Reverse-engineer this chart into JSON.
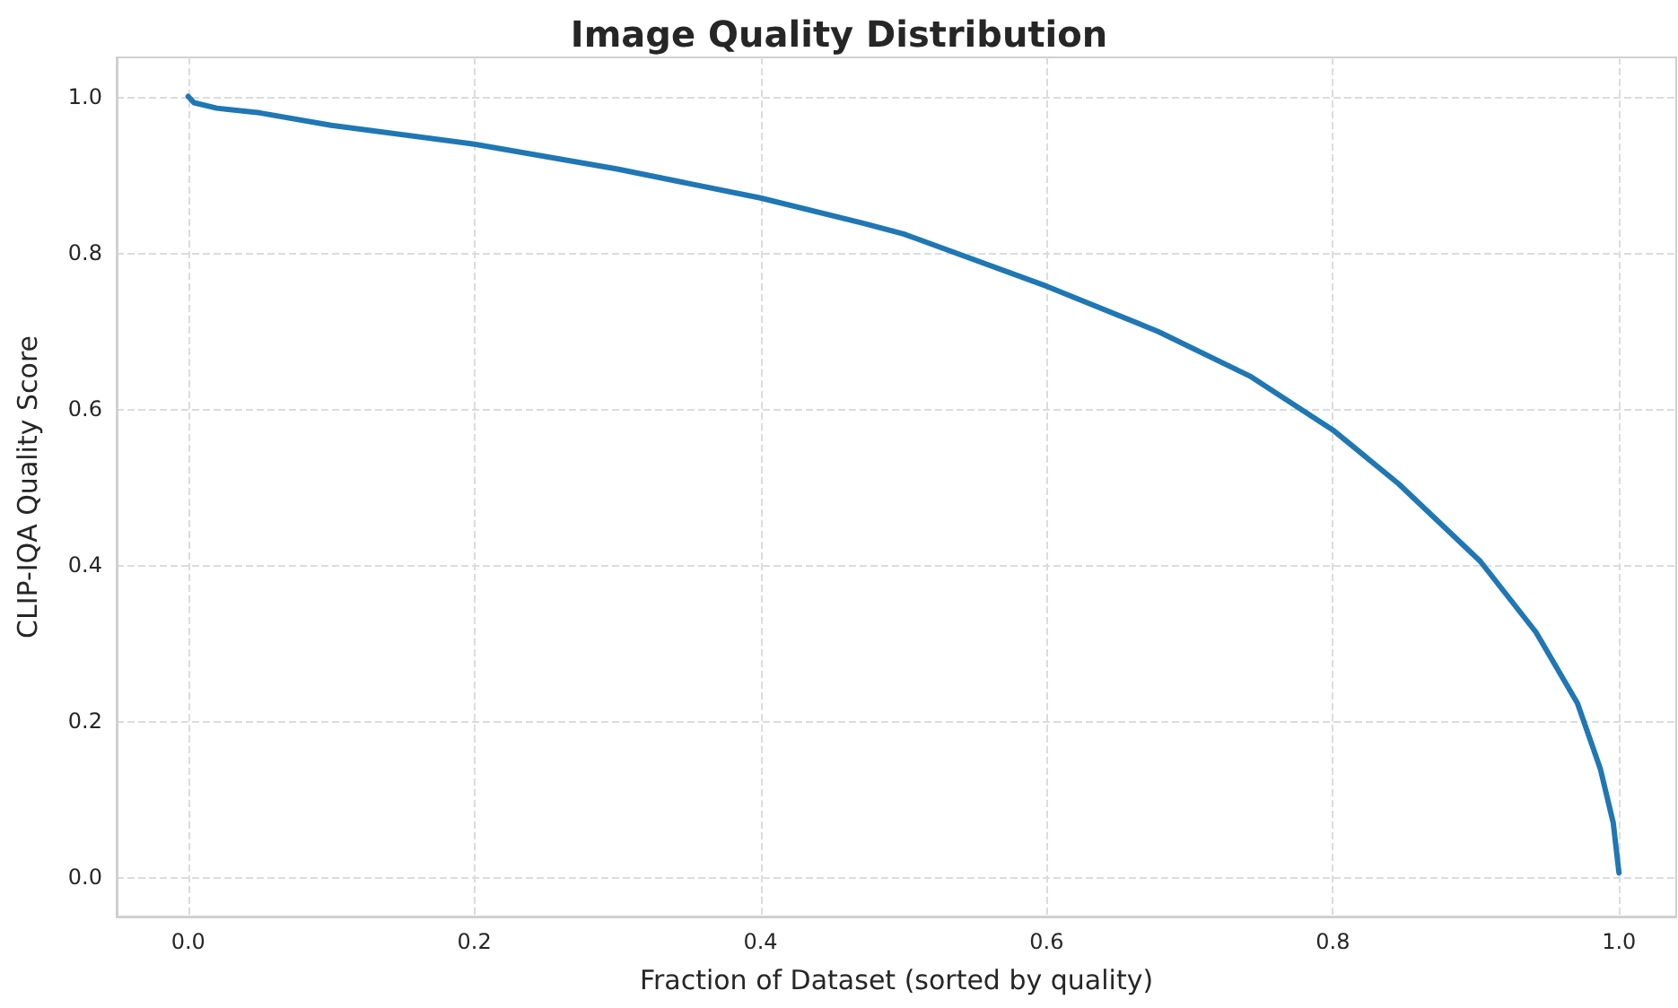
{
  "chart_data": {
    "type": "line",
    "title": "Image Quality Distribution",
    "xlabel": "Fraction of Dataset (sorted by quality)",
    "ylabel": "CLIP-IQA Quality Score",
    "series": [
      {
        "color": "#1f77b4",
        "x": [
          0,
          0.004,
          0.02,
          0.05,
          0.1,
          0.2,
          0.3,
          0.4,
          0.471,
          0.5,
          0.6,
          0.678,
          0.742,
          0.8,
          0.846,
          0.903,
          0.942,
          0.971,
          0.987,
          0.996,
          1.0
        ],
        "values": [
          1.0,
          0.992,
          0.985,
          0.979,
          0.963,
          0.939,
          0.907,
          0.87,
          0.838,
          0.824,
          0.757,
          0.699,
          0.642,
          0.573,
          0.504,
          0.405,
          0.314,
          0.223,
          0.139,
          0.07,
          0.006
        ]
      }
    ],
    "xlim": [
      -0.05,
      1.04
    ],
    "ylim": [
      -0.05,
      1.05
    ],
    "xticks": [
      {
        "value": 0,
        "label": "0.0"
      },
      0.2,
      0.4,
      0.6,
      0.8,
      {
        "value": 1,
        "label": "1.0"
      }
    ],
    "yticks": [
      {
        "value": 0,
        "label": "0.0"
      },
      0.2,
      0.4,
      0.6,
      0.8,
      {
        "value": 1,
        "label": "1.0"
      }
    ],
    "grid": true,
    "marker": "none",
    "line_style": "solid"
  }
}
